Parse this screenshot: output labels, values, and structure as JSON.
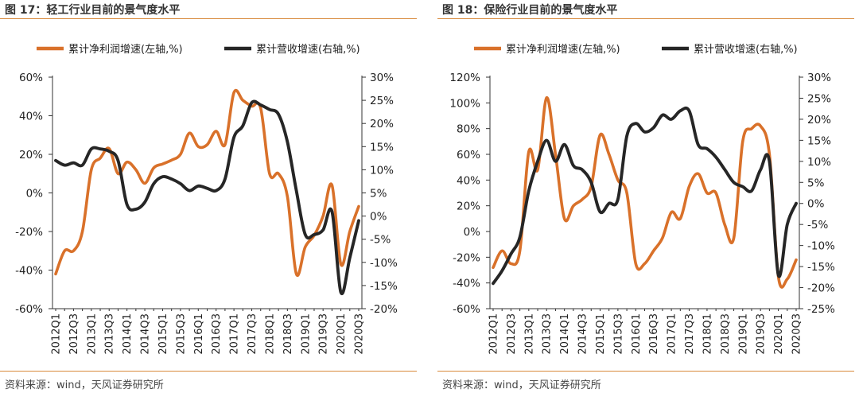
{
  "charts": [
    {
      "figure_title": "图 17：轻工行业目前的景气度水平",
      "source": "资料来源：wind，天风证券研究所",
      "legend": [
        "累计净利润增速(左轴,%)",
        "累计营收增速(右轴,%)"
      ],
      "colors": {
        "profit": "#d9712a",
        "revenue": "#262626"
      }
    },
    {
      "figure_title": "图 18：保险行业目前的景气度水平",
      "source": "资料来源：wind，天风证券研究所",
      "legend": [
        "累计净利润增速(左轴,%)",
        "累计营收增速(右轴,%)"
      ],
      "colors": {
        "profit": "#d9712a",
        "revenue": "#262626"
      }
    }
  ],
  "chart_data": [
    {
      "type": "line",
      "x": [
        "2012Q1",
        "2012Q2",
        "2012Q3",
        "2012Q4",
        "2013Q1",
        "2013Q2",
        "2013Q3",
        "2013Q4",
        "2014Q1",
        "2014Q2",
        "2014Q3",
        "2014Q4",
        "2015Q1",
        "2015Q2",
        "2015Q3",
        "2015Q4",
        "2016Q1",
        "2016Q2",
        "2016Q3",
        "2016Q4",
        "2017Q1",
        "2017Q2",
        "2017Q3",
        "2017Q4",
        "2018Q1",
        "2018Q2",
        "2018Q3",
        "2018Q4",
        "2019Q1",
        "2019Q2",
        "2019Q3",
        "2019Q4",
        "2020Q1",
        "2020Q2",
        "2020Q3"
      ],
      "xtick_labels": [
        "2012Q1",
        "2012Q3",
        "2013Q1",
        "2013Q3",
        "2014Q1",
        "2014Q3",
        "2015Q1",
        "2015Q3",
        "2016Q1",
        "2016Q3",
        "2017Q1",
        "2017Q3",
        "2018Q1",
        "2018Q3",
        "2019Q1",
        "2019Q3",
        "2020Q1",
        "2020Q3"
      ],
      "left_axis": {
        "ylim": [
          -60,
          60
        ],
        "ticks": [
          "60%",
          "40%",
          "20%",
          "0%",
          "-20%",
          "-40%",
          "-60%"
        ]
      },
      "right_axis": {
        "ylim": [
          -20,
          30
        ],
        "ticks": [
          "30%",
          "25%",
          "20%",
          "15%",
          "10%",
          "5%",
          "0%",
          "-5%",
          "-10%",
          "-15%",
          "-20%"
        ]
      },
      "series": [
        {
          "name": "累计净利润增速(左轴,%)",
          "axis": "left",
          "values": [
            -42,
            -30,
            -30,
            -20,
            12,
            18,
            23,
            10,
            16,
            12,
            5,
            13,
            15,
            17,
            20,
            31,
            24,
            25,
            32,
            25,
            52,
            48,
            45,
            44,
            10,
            10,
            -2,
            -42,
            -28,
            -22,
            -12,
            4,
            -37,
            -20,
            -7
          ]
        },
        {
          "name": "累计营收增速(右轴,%)",
          "axis": "right",
          "values": [
            12,
            11,
            11.5,
            11,
            14.5,
            14.5,
            14,
            12,
            2.5,
            1.5,
            3,
            7,
            8.5,
            8,
            7,
            5.5,
            6.5,
            6,
            5.5,
            8,
            17,
            19.5,
            24.5,
            24,
            23,
            22,
            16,
            5.5,
            -4,
            -4,
            -3,
            1,
            -16.5,
            -9,
            -1
          ]
        }
      ]
    },
    {
      "type": "line",
      "x": [
        "2012Q1",
        "2012Q2",
        "2012Q3",
        "2012Q4",
        "2013Q1",
        "2013Q2",
        "2013Q3",
        "2013Q4",
        "2014Q1",
        "2014Q2",
        "2014Q3",
        "2014Q4",
        "2015Q1",
        "2015Q2",
        "2015Q3",
        "2015Q4",
        "2016Q1",
        "2016Q2",
        "2016Q3",
        "2016Q4",
        "2017Q1",
        "2017Q2",
        "2017Q3",
        "2017Q4",
        "2018Q1",
        "2018Q2",
        "2018Q3",
        "2018Q4",
        "2019Q1",
        "2019Q2",
        "2019Q3",
        "2019Q4",
        "2020Q1",
        "2020Q2",
        "2020Q3"
      ],
      "xtick_labels": [
        "2012Q1",
        "2012Q3",
        "2013Q1",
        "2013Q3",
        "2014Q1",
        "2014Q3",
        "2015Q1",
        "2015Q3",
        "2016Q1",
        "2016Q3",
        "2017Q1",
        "2017Q3",
        "2018Q1",
        "2018Q3",
        "2019Q1",
        "2019Q3",
        "2020Q1",
        "2020Q3"
      ],
      "left_axis": {
        "ylim": [
          -60,
          120
        ],
        "ticks": [
          "120%",
          "100%",
          "80%",
          "60%",
          "40%",
          "20%",
          "0%",
          "-20%",
          "-40%",
          "-60%"
        ]
      },
      "right_axis": {
        "ylim": [
          -25,
          30
        ],
        "ticks": [
          "30%",
          "25%",
          "20%",
          "15%",
          "10%",
          "5%",
          "0%",
          "-5%",
          "-10%",
          "-15%",
          "-20%",
          "-25%"
        ]
      },
      "series": [
        {
          "name": "累计净利润增速(左轴,%)",
          "axis": "left",
          "values": [
            -28,
            -15,
            -25,
            -15,
            62,
            48,
            104,
            60,
            10,
            20,
            25,
            35,
            75,
            60,
            40,
            30,
            -25,
            -25,
            -15,
            -5,
            15,
            10,
            35,
            45,
            30,
            30,
            5,
            -5,
            70,
            80,
            82,
            60,
            -35,
            -37,
            -22
          ]
        },
        {
          "name": "累计营收增速(右轴,%)",
          "axis": "right",
          "values": [
            -19,
            -16,
            -12,
            -8,
            3,
            10,
            15,
            10,
            14,
            9,
            8,
            5,
            -2,
            0,
            1,
            16,
            19,
            17,
            18,
            21,
            20,
            22,
            22,
            14,
            13,
            11,
            8,
            5,
            4,
            3,
            8,
            10,
            -17,
            -5,
            0
          ]
        }
      ]
    }
  ]
}
